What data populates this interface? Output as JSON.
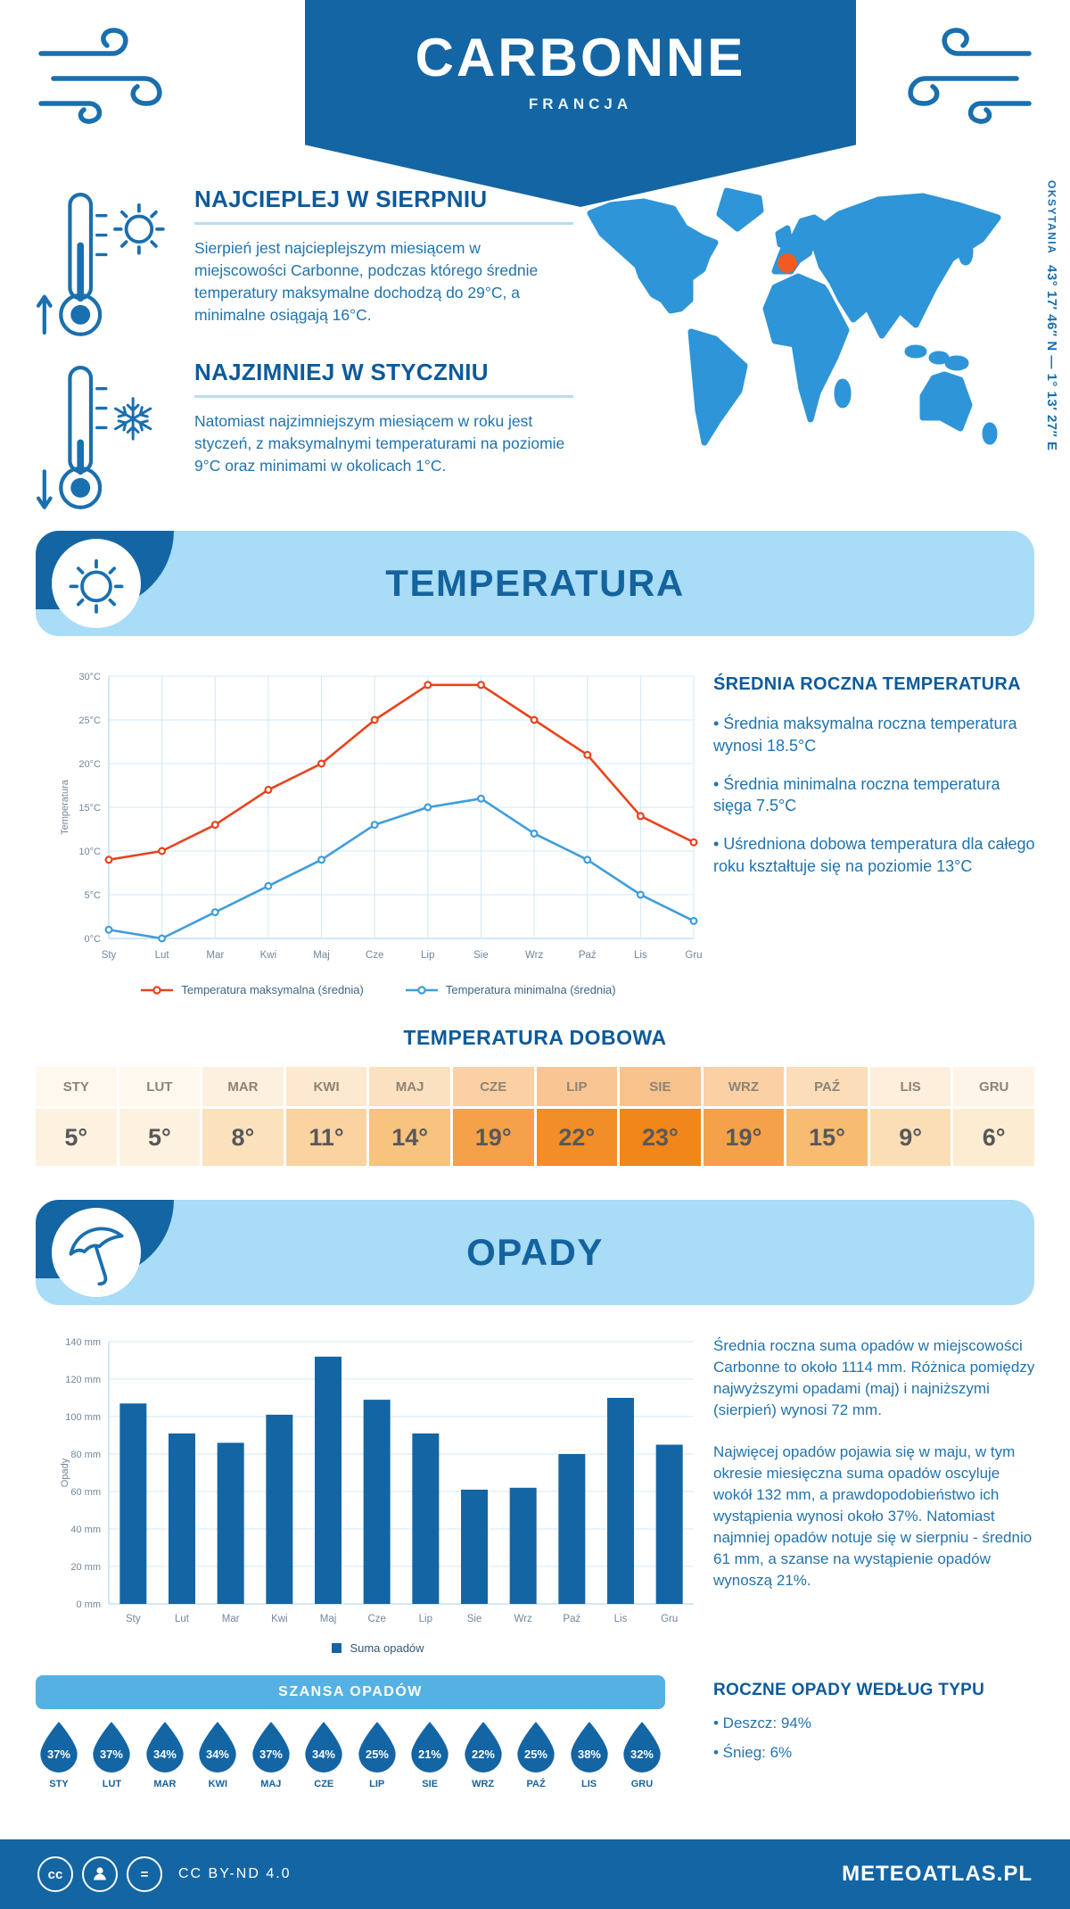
{
  "header": {
    "title": "CARBONNE",
    "subtitle": "FRANCJA"
  },
  "highlights": {
    "warm": {
      "heading": "NAJCIEPLEJ W SIERPNIU",
      "body": "Sierpień jest najcieplejszym miesiącem w miejscowości Carbonne, podczas którego średnie temperatury maksymalne dochodzą do 29°C, a minimalne osiągają 16°C."
    },
    "cold": {
      "heading": "NAJZIMNIEJ W STYCZNIU",
      "body": "Natomiast najzimniejszym miesiącem w roku jest styczeń, z maksymalnymi temperaturami na poziomie 9°C oraz minimami w okolicach 1°C."
    }
  },
  "map": {
    "region": "OKSYTANIA",
    "coordinates": "43° 17′ 46″ N — 1° 13′ 27″ E",
    "marker_color": "#f15a22",
    "land_color": "#2e95d8"
  },
  "temperature": {
    "banner": "TEMPERATURA",
    "summary_heading": "ŚREDNIA ROCZNA TEMPERATURA",
    "bullets": [
      "Średnia maksymalna roczna temperatura wynosi 18.5°C",
      "Średnia minimalna roczna temperatura sięga 7.5°C",
      "Uśredniona dobowa temperatura dla całego roku kształtuje się na poziomie 13°C"
    ],
    "daily_heading": "TEMPERATURA DOBOWA"
  },
  "daily_table": {
    "months": [
      "STY",
      "LUT",
      "MAR",
      "KWI",
      "MAJ",
      "CZE",
      "LIP",
      "SIE",
      "WRZ",
      "PAŹ",
      "LIS",
      "GRU"
    ],
    "values": [
      "5°",
      "5°",
      "8°",
      "11°",
      "14°",
      "19°",
      "22°",
      "23°",
      "19°",
      "15°",
      "9°",
      "6°"
    ],
    "value_colors": [
      "#fdf2df",
      "#fdf2df",
      "#fbe2bd",
      "#fad3a0",
      "#f8c37f",
      "#f5a149",
      "#f28e27",
      "#f1861b",
      "#f5a149",
      "#f7bb72",
      "#fcdeb6",
      "#fcecd2"
    ],
    "header_colors": [
      "#fef8ef",
      "#fef8ef",
      "#fdf0de",
      "#fce9d0",
      "#fbe1bf",
      "#fad0a4",
      "#f9c693",
      "#f8c28c",
      "#fad0a4",
      "#fbddb9",
      "#fdefdb",
      "#fef5e9"
    ]
  },
  "precipitation": {
    "banner": "OPADY",
    "paragraphs": [
      "Średnia roczna suma opadów w miejscowości Carbonne to około 1114 mm. Różnica pomiędzy najwyższymi opadami (maj) i najniższymi (sierpień) wynosi 72 mm.",
      "Najwięcej opadów pojawia się w maju, w tym okresie miesięczna suma opadów oscyluje wokół 132 mm, a prawdopodobieństwo ich wystąpienia wynosi około 37%. Natomiast najmniej opadów notuje się w sierpniu - średnio 61 mm, a szanse na wystąpienie opadów wynoszą 21%."
    ],
    "chance_banner": "SZANSA OPADÓW",
    "chance_months": [
      "STY",
      "LUT",
      "MAR",
      "KWI",
      "MAJ",
      "CZE",
      "LIP",
      "SIE",
      "WRZ",
      "PAŹ",
      "LIS",
      "GRU"
    ],
    "chance_values": [
      "37%",
      "37%",
      "34%",
      "34%",
      "37%",
      "34%",
      "25%",
      "21%",
      "22%",
      "25%",
      "38%",
      "32%"
    ],
    "type_heading": "ROCZNE OPADY WEDŁUG TYPU",
    "type_bullets": [
      "Deszcz: 94%",
      "Śnieg: 6%"
    ]
  },
  "chart_data": [
    {
      "type": "line",
      "x": [
        "Sty",
        "Lut",
        "Mar",
        "Kwi",
        "Maj",
        "Cze",
        "Lip",
        "Sie",
        "Wrz",
        "Paź",
        "Lis",
        "Gru"
      ],
      "ylabel": "Temperatura",
      "ylim": [
        0,
        30
      ],
      "ytick_step": 5,
      "ytick_suffix": "°C",
      "grid": true,
      "legend_position": "bottom",
      "series": [
        {
          "name": "Temperatura maksymalna (średnia)",
          "color": "#e8431c",
          "values": [
            9,
            10,
            13,
            17,
            20,
            25,
            29,
            29,
            25,
            21,
            14,
            11
          ]
        },
        {
          "name": "Temperatura minimalna (średnia)",
          "color": "#3f9ddb",
          "values": [
            1,
            0,
            3,
            6,
            9,
            13,
            15,
            16,
            12,
            9,
            5,
            2
          ]
        }
      ]
    },
    {
      "type": "bar",
      "categories": [
        "Sty",
        "Lut",
        "Mar",
        "Kwi",
        "Maj",
        "Cze",
        "Lip",
        "Sie",
        "Wrz",
        "Paź",
        "Lis",
        "Gru"
      ],
      "values": [
        107,
        91,
        86,
        101,
        132,
        109,
        91,
        61,
        62,
        80,
        110,
        85
      ],
      "ylabel": "Opady",
      "ylim": [
        0,
        140
      ],
      "ytick_step": 20,
      "ytick_suffix": " mm",
      "bar_color": "#1465a4",
      "legend": "Suma opadów"
    }
  ],
  "footer": {
    "license": "CC BY-ND 4.0",
    "site": "METEOATLAS.PL"
  },
  "colors": {
    "primary": "#1465a4",
    "banner_light": "#a9dcf6",
    "heading": "#0d5a9b",
    "body_text": "#2173ae",
    "chance_banner_bg": "#55b1e4"
  },
  "icons": {
    "wind": "wind-icon",
    "thermometer": "thermometer-icon",
    "sun": "sun-icon",
    "snowflake": "snowflake-icon",
    "arrow_up": "arrow-up-icon",
    "arrow_down": "arrow-down-icon",
    "umbrella": "umbrella-icon",
    "raindrop": "raindrop-icon",
    "marker": "location-marker",
    "cc": "cc-icon",
    "cc_by": "cc-by-icon",
    "cc_nd": "cc-nd-icon"
  }
}
